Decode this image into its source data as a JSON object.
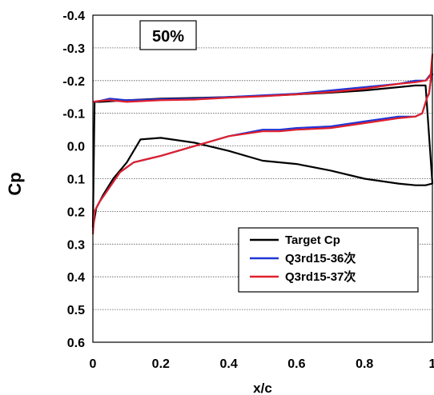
{
  "chart_data": {
    "type": "line",
    "annotation": "50%",
    "xlabel": "x/c",
    "ylabel": "Cp",
    "xlim": [
      0,
      1
    ],
    "ylim": [
      -0.4,
      0.6
    ],
    "y_inverted": true,
    "grid": "horizontal",
    "legend_position": "bottom-right",
    "x_ticks": [
      0,
      0.2,
      0.4,
      0.6,
      0.8,
      1
    ],
    "x_tick_labels": [
      "0",
      "0.2",
      "0.4",
      "0.6",
      "0.8",
      "1"
    ],
    "y_ticks": [
      -0.4,
      -0.3,
      -0.2,
      -0.1,
      0.0,
      0.1,
      0.2,
      0.3,
      0.4,
      0.5,
      0.6
    ],
    "y_tick_labels": [
      "-0.4",
      "-0.3",
      "-0.2",
      "-0.1",
      "0.0",
      "0.1",
      "0.2",
      "0.3",
      "0.4",
      "0.5",
      "0.6"
    ],
    "series": [
      {
        "name": "Target Cp",
        "color": "#000000",
        "x": [
          0,
          0.01,
          0.03,
          0.06,
          0.1,
          0.14,
          0.2,
          0.3,
          0.4,
          0.5,
          0.6,
          0.7,
          0.8,
          0.9,
          0.95,
          0.98,
          1.0,
          0.98,
          0.95,
          0.9,
          0.8,
          0.7,
          0.6,
          0.5,
          0.4,
          0.3,
          0.2,
          0.1,
          0.05,
          0.02,
          0.005,
          0
        ],
        "y": [
          0.25,
          0.19,
          0.15,
          0.1,
          0.05,
          -0.02,
          -0.025,
          -0.01,
          0.015,
          0.045,
          0.055,
          0.075,
          0.1,
          0.115,
          0.12,
          0.12,
          0.115,
          -0.185,
          -0.185,
          -0.18,
          -0.17,
          -0.163,
          -0.158,
          -0.153,
          -0.15,
          -0.147,
          -0.145,
          -0.14,
          -0.137,
          -0.135,
          -0.135,
          0.25
        ]
      },
      {
        "name": "Q3rd15-36次",
        "color": "#1f35d6",
        "x": [
          0,
          0.005,
          0.02,
          0.04,
          0.08,
          0.12,
          0.16,
          0.2,
          0.3,
          0.4,
          0.5,
          0.55,
          0.6,
          0.7,
          0.8,
          0.9,
          0.95,
          0.97,
          0.985,
          0.99,
          0.995,
          1.0,
          0.995,
          0.98,
          0.95,
          0.9,
          0.8,
          0.7,
          0.6,
          0.5,
          0.4,
          0.3,
          0.2,
          0.1,
          0.05,
          0.02,
          0
        ],
        "y": [
          0.26,
          0.2,
          0.17,
          0.14,
          0.08,
          0.05,
          0.04,
          0.03,
          0.0,
          -0.03,
          -0.05,
          -0.05,
          -0.055,
          -0.06,
          -0.075,
          -0.09,
          -0.09,
          -0.1,
          -0.15,
          -0.16,
          -0.2,
          -0.22,
          -0.22,
          -0.2,
          -0.2,
          -0.19,
          -0.18,
          -0.17,
          -0.16,
          -0.155,
          -0.15,
          -0.145,
          -0.143,
          -0.14,
          -0.145,
          -0.138,
          -0.135
        ]
      },
      {
        "name": "Q3rd15-37次",
        "color": "#e0202a",
        "x": [
          0,
          0.005,
          0.02,
          0.04,
          0.08,
          0.12,
          0.16,
          0.2,
          0.3,
          0.4,
          0.5,
          0.55,
          0.6,
          0.7,
          0.8,
          0.9,
          0.95,
          0.97,
          0.985,
          0.99,
          0.995,
          1.0,
          0.995,
          0.99,
          0.98,
          0.95,
          0.9,
          0.8,
          0.7,
          0.6,
          0.5,
          0.4,
          0.3,
          0.2,
          0.1,
          0.05,
          0.02,
          0
        ],
        "y": [
          0.27,
          0.2,
          0.17,
          0.14,
          0.08,
          0.05,
          0.04,
          0.03,
          0.0,
          -0.03,
          -0.045,
          -0.045,
          -0.05,
          -0.055,
          -0.07,
          -0.085,
          -0.09,
          -0.1,
          -0.15,
          -0.16,
          -0.2,
          -0.28,
          -0.22,
          -0.21,
          -0.2,
          -0.195,
          -0.19,
          -0.175,
          -0.165,
          -0.158,
          -0.152,
          -0.148,
          -0.142,
          -0.14,
          -0.135,
          -0.14,
          -0.138,
          -0.135
        ]
      }
    ]
  }
}
